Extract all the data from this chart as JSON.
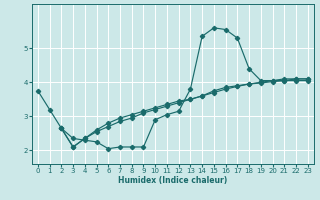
{
  "xlabel": "Humidex (Indice chaleur)",
  "bg_color": "#cce8e8",
  "grid_color": "#ffffff",
  "line_color": "#1a6b6b",
  "xlim": [
    -0.5,
    23.5
  ],
  "ylim": [
    1.6,
    6.3
  ],
  "xticks": [
    0,
    1,
    2,
    3,
    4,
    5,
    6,
    7,
    8,
    9,
    10,
    11,
    12,
    13,
    14,
    15,
    16,
    17,
    18,
    19,
    20,
    21,
    22,
    23
  ],
  "yticks": [
    2,
    3,
    4,
    5
  ],
  "line1_x": [
    0,
    1,
    2,
    3,
    4,
    5,
    6,
    7,
    8,
    9,
    10,
    11,
    12,
    13,
    14,
    15,
    16,
    17,
    18,
    19,
    20,
    21,
    22,
    23
  ],
  "line1_y": [
    3.75,
    3.2,
    2.65,
    2.35,
    2.3,
    2.25,
    2.05,
    2.1,
    2.1,
    2.1,
    2.9,
    3.05,
    3.15,
    3.8,
    5.35,
    5.6,
    5.55,
    5.3,
    4.4,
    4.05,
    4.05,
    4.05,
    4.05,
    4.05
  ],
  "line2_x": [
    2,
    3,
    4,
    5,
    6,
    7,
    8,
    9,
    10,
    11,
    12,
    13,
    14,
    15,
    16,
    17,
    18,
    19,
    20,
    21,
    22,
    23
  ],
  "line2_y": [
    2.65,
    2.1,
    2.35,
    2.55,
    2.7,
    2.85,
    2.95,
    3.1,
    3.2,
    3.3,
    3.4,
    3.5,
    3.6,
    3.75,
    3.85,
    3.9,
    3.95,
    4.0,
    4.05,
    4.1,
    4.1,
    4.1
  ],
  "line3_x": [
    2,
    3,
    4,
    5,
    6,
    7,
    8,
    9,
    10,
    11,
    12,
    13,
    14,
    15,
    16,
    17,
    18,
    19,
    20,
    21,
    22,
    23
  ],
  "line3_y": [
    2.65,
    2.1,
    2.35,
    2.6,
    2.8,
    2.95,
    3.05,
    3.15,
    3.25,
    3.35,
    3.45,
    3.5,
    3.6,
    3.7,
    3.8,
    3.88,
    3.95,
    3.98,
    4.02,
    4.05,
    4.1,
    4.1
  ]
}
